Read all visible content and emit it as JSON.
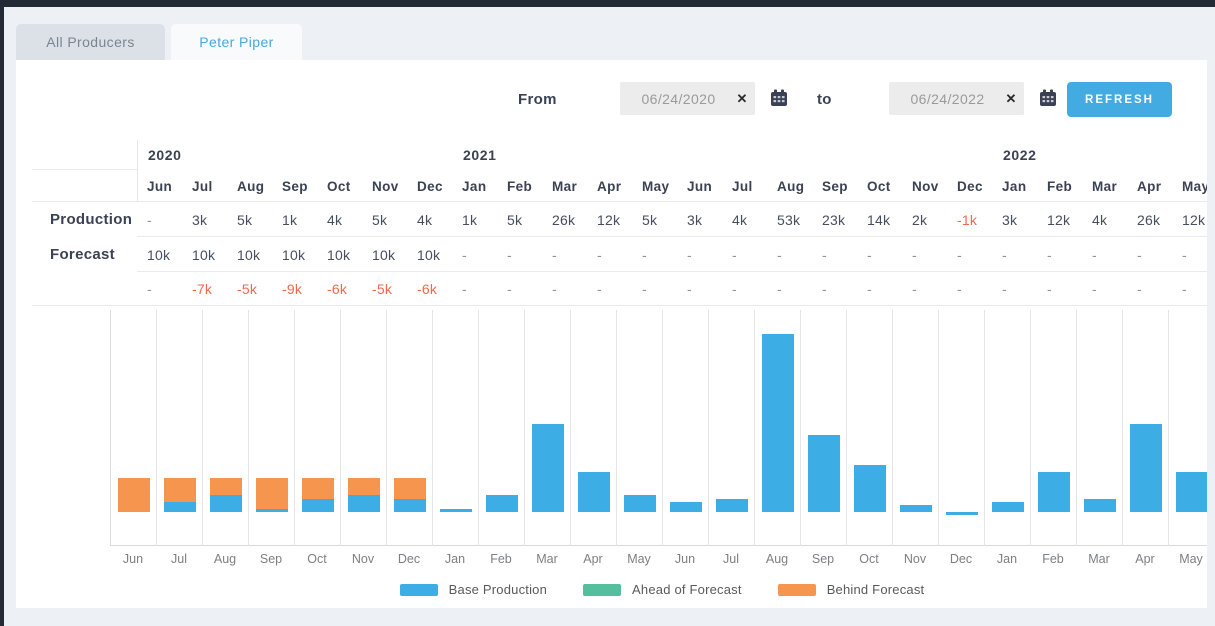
{
  "tabs": [
    {
      "label": "All Producers",
      "active": false
    },
    {
      "label": "Peter Piper",
      "active": true
    }
  ],
  "filter": {
    "from_label": "From",
    "to_label": "to",
    "from_value": "06/24/2020",
    "to_value": "06/24/2022",
    "clear_icon": "✕",
    "refresh_label": "REFRESH",
    "refresh_color": "#42ace2"
  },
  "table": {
    "year_groups": [
      {
        "label": "2020",
        "start_col": 0,
        "span": 7
      },
      {
        "label": "2021",
        "start_col": 7,
        "span": 12
      },
      {
        "label": "2022",
        "start_col": 19,
        "span": 5
      }
    ],
    "months": [
      "Jun",
      "Jul",
      "Aug",
      "Sep",
      "Oct",
      "Nov",
      "Dec",
      "Jan",
      "Feb",
      "Mar",
      "Apr",
      "May",
      "Jun",
      "Jul",
      "Aug",
      "Sep",
      "Oct",
      "Nov",
      "Dec",
      "Jan",
      "Feb",
      "Mar",
      "Apr",
      "May"
    ],
    "rows": [
      {
        "label": "Production",
        "values": [
          "-",
          "3k",
          "5k",
          "1k",
          "4k",
          "5k",
          "4k",
          "1k",
          "5k",
          "26k",
          "12k",
          "5k",
          "3k",
          "4k",
          "53k",
          "23k",
          "14k",
          "2k",
          "-1k",
          "3k",
          "12k",
          "4k",
          "26k",
          "12k"
        ]
      },
      {
        "label": "Forecast",
        "values": [
          "10k",
          "10k",
          "10k",
          "10k",
          "10k",
          "10k",
          "10k",
          "-",
          "-",
          "-",
          "-",
          "-",
          "-",
          "-",
          "-",
          "-",
          "-",
          "-",
          "-",
          "-",
          "-",
          "-",
          "-",
          "-"
        ]
      },
      {
        "label": "",
        "values": [
          "-",
          "-7k",
          "-5k",
          "-9k",
          "-6k",
          "-5k",
          "-6k",
          "-",
          "-",
          "-",
          "-",
          "-",
          "-",
          "-",
          "-",
          "-",
          "-",
          "-",
          "-",
          "-",
          "-",
          "-",
          "-",
          "-"
        ]
      }
    ]
  },
  "chart_data": {
    "type": "bar",
    "stacked": true,
    "unit": "thousands",
    "categories": [
      "Jun 2020",
      "Jul 2020",
      "Aug 2020",
      "Sep 2020",
      "Oct 2020",
      "Nov 2020",
      "Dec 2020",
      "Jan 2021",
      "Feb 2021",
      "Mar 2021",
      "Apr 2021",
      "May 2021",
      "Jun 2021",
      "Jul 2021",
      "Aug 2021",
      "Sep 2021",
      "Oct 2021",
      "Nov 2021",
      "Dec 2021",
      "Jan 2022",
      "Feb 2022",
      "Mar 2022",
      "Apr 2022",
      "May 2022"
    ],
    "x_tick_labels": [
      "Jun",
      "Jul",
      "Aug",
      "Sep",
      "Oct",
      "Nov",
      "Dec",
      "Jan",
      "Feb",
      "Mar",
      "Apr",
      "May",
      "Jun",
      "Jul",
      "Aug",
      "Sep",
      "Oct",
      "Nov",
      "Dec",
      "Jan",
      "Feb",
      "Mar",
      "Apr",
      "May"
    ],
    "series": [
      {
        "name": "Base Production",
        "color": "#3dade6",
        "values_k": [
          0,
          3,
          5,
          1,
          4,
          5,
          4,
          1,
          5,
          26,
          12,
          5,
          3,
          4,
          53,
          23,
          14,
          2,
          -1,
          3,
          12,
          4,
          26,
          12
        ]
      },
      {
        "name": "Ahead of Forecast",
        "color": "#53bf9d",
        "values_k": [
          0,
          0,
          0,
          0,
          0,
          0,
          0,
          0,
          0,
          0,
          0,
          0,
          0,
          0,
          0,
          0,
          0,
          0,
          0,
          0,
          0,
          0,
          0,
          0
        ]
      },
      {
        "name": "Behind Forecast",
        "color": "#f6954e",
        "values_k": [
          10,
          7,
          5,
          9,
          6,
          5,
          6,
          0,
          0,
          0,
          0,
          0,
          0,
          0,
          0,
          0,
          0,
          0,
          0,
          0,
          0,
          0,
          0,
          0
        ]
      }
    ],
    "ylim_k": [
      -10,
      60
    ],
    "y_axis_labels": "none",
    "grid": "vertical",
    "legend_position": "bottom"
  },
  "legend": [
    {
      "label": "Base Production",
      "color": "#3dade6"
    },
    {
      "label": "Ahead of Forecast",
      "color": "#53bf9d"
    },
    {
      "label": "Behind Forecast",
      "color": "#f6954e"
    }
  ]
}
